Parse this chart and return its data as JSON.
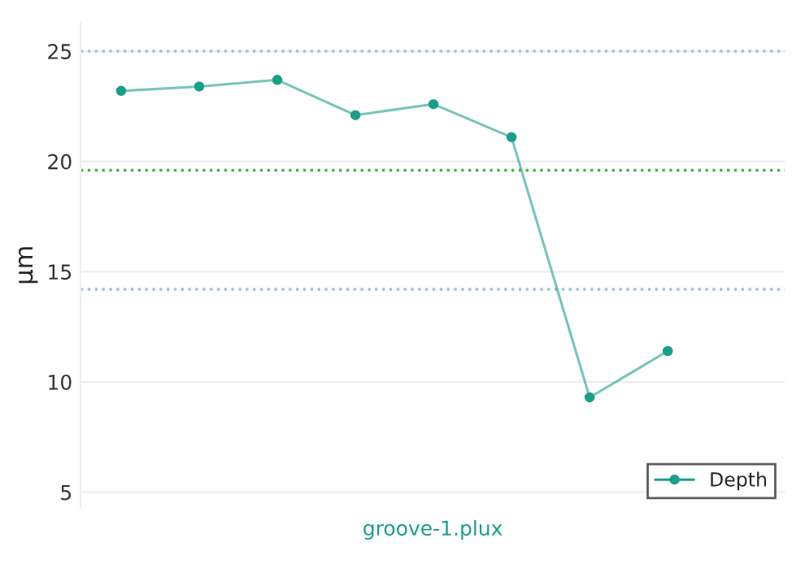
{
  "chart_data": {
    "type": "line",
    "xlabel": "groove-1.plux",
    "ylabel": "µm",
    "categories": [
      null,
      null,
      null,
      null,
      null,
      null,
      null,
      null
    ],
    "series": [
      {
        "name": "Depth",
        "color": "#1a9e8a",
        "values": [
          23.2,
          23.4,
          23.7,
          22.1,
          22.6,
          21.1,
          9.3,
          11.4
        ]
      }
    ],
    "ylim": [
      4.3,
      26.3
    ],
    "yticks": [
      5,
      10,
      15,
      20,
      25
    ],
    "ref_lines": [
      {
        "axis": "y",
        "value": 25,
        "color": "#a3bfe3",
        "line_style": "dotted"
      },
      {
        "axis": "y",
        "value": 19.6,
        "color": "#4cae4c",
        "line_style": "dotted"
      },
      {
        "axis": "y",
        "value": 14.2,
        "color": "#a3bfe3",
        "line_style": "dotted"
      }
    ],
    "grid": "y",
    "legend": "bottom right",
    "marker": "circle",
    "line_style": "solid"
  }
}
